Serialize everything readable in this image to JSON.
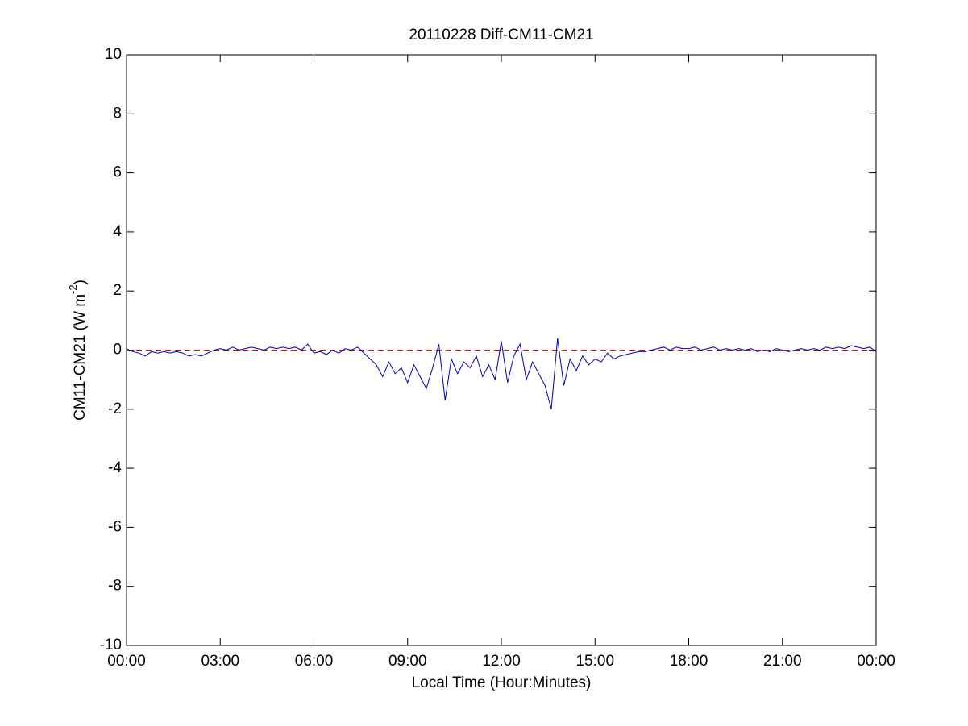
{
  "chart_data": {
    "type": "line",
    "title": "20110228 Diff-CM11-CM21",
    "x_label": "Local Time (Hour:Minutes)",
    "y_label": {
      "text": "CM11-CM21 (W m",
      "superscript": "-2",
      "suffix": ")"
    },
    "x": [
      0,
      0.2,
      0.4,
      0.6,
      0.8,
      1,
      1.2,
      1.4,
      1.6,
      1.8,
      2,
      2.2,
      2.4,
      2.6,
      2.8,
      3,
      3.2,
      3.4,
      3.6,
      3.8,
      4,
      4.2,
      4.4,
      4.6,
      4.8,
      5,
      5.2,
      5.4,
      5.6,
      5.8,
      6,
      6.2,
      6.4,
      6.6,
      6.8,
      7,
      7.2,
      7.4,
      7.6,
      7.8,
      8,
      8.2,
      8.4,
      8.6,
      8.8,
      9,
      9.2,
      9.4,
      9.6,
      9.8,
      10,
      10.2,
      10.4,
      10.6,
      10.8,
      11,
      11.2,
      11.4,
      11.6,
      11.8,
      12,
      12.2,
      12.4,
      12.6,
      12.8,
      13,
      13.2,
      13.4,
      13.6,
      13.8,
      14,
      14.2,
      14.4,
      14.6,
      14.8,
      15,
      15.2,
      15.4,
      15.6,
      15.8,
      16,
      16.2,
      16.4,
      16.6,
      16.8,
      17,
      17.2,
      17.4,
      17.6,
      17.8,
      18,
      18.2,
      18.4,
      18.6,
      18.8,
      19,
      19.2,
      19.4,
      19.6,
      19.8,
      20,
      20.2,
      20.4,
      20.6,
      20.8,
      21,
      21.2,
      21.4,
      21.6,
      21.8,
      22,
      22.2,
      22.4,
      22.6,
      22.8,
      23,
      23.2,
      23.4,
      23.6,
      23.8,
      24
    ],
    "series": [
      {
        "color": "#0000b0",
        "values": [
          0.05,
          -0.05,
          -0.1,
          -0.2,
          -0.05,
          -0.1,
          -0.05,
          -0.1,
          -0.05,
          -0.1,
          -0.2,
          -0.15,
          -0.2,
          -0.1,
          0.0,
          0.05,
          0.0,
          0.1,
          0.0,
          0.05,
          0.1,
          0.05,
          0.0,
          0.1,
          0.05,
          0.1,
          0.05,
          0.1,
          0.0,
          0.2,
          -0.1,
          -0.05,
          -0.15,
          0.0,
          -0.1,
          0.05,
          0.0,
          0.1,
          -0.1,
          -0.3,
          -0.5,
          -0.9,
          -0.4,
          -0.8,
          -0.6,
          -1.1,
          -0.5,
          -0.9,
          -1.3,
          -0.6,
          0.2,
          -1.7,
          -0.3,
          -0.8,
          -0.4,
          -0.6,
          -0.2,
          -0.9,
          -0.5,
          -1.0,
          0.3,
          -1.1,
          -0.2,
          0.2,
          -1.0,
          -0.4,
          -0.8,
          -1.2,
          -2.0,
          0.4,
          -1.2,
          -0.3,
          -0.7,
          -0.2,
          -0.5,
          -0.3,
          -0.4,
          -0.1,
          -0.3,
          -0.2,
          -0.15,
          -0.1,
          -0.05,
          -0.05,
          0.0,
          0.05,
          0.1,
          0.0,
          0.1,
          0.05,
          0.05,
          0.1,
          0.0,
          0.05,
          0.1,
          0.0,
          0.05,
          0.0,
          0.05,
          0.0,
          0.05,
          -0.05,
          0.0,
          -0.05,
          0.05,
          0.0,
          -0.05,
          0.0,
          0.05,
          0.0,
          0.05,
          0.0,
          0.1,
          0.05,
          0.1,
          0.05,
          0.15,
          0.1,
          0.05,
          0.1,
          -0.05
        ]
      }
    ],
    "reference_line": {
      "value": 0,
      "color": "#e00000"
    },
    "xlim": [
      0,
      24
    ],
    "xticks": [
      {
        "value": 0,
        "label": "00:00"
      },
      {
        "value": 3,
        "label": "03:00"
      },
      {
        "value": 6,
        "label": "06:00"
      },
      {
        "value": 9,
        "label": "09:00"
      },
      {
        "value": 12,
        "label": "12:00"
      },
      {
        "value": 15,
        "label": "15:00"
      },
      {
        "value": 18,
        "label": "18:00"
      },
      {
        "value": 21,
        "label": "21:00"
      },
      {
        "value": 24,
        "label": "00:00"
      }
    ],
    "ylim": [
      -10,
      10
    ],
    "yticks": [
      -10,
      -8,
      -6,
      -4,
      -2,
      0,
      2,
      4,
      6,
      8,
      10
    ],
    "grid": false
  }
}
